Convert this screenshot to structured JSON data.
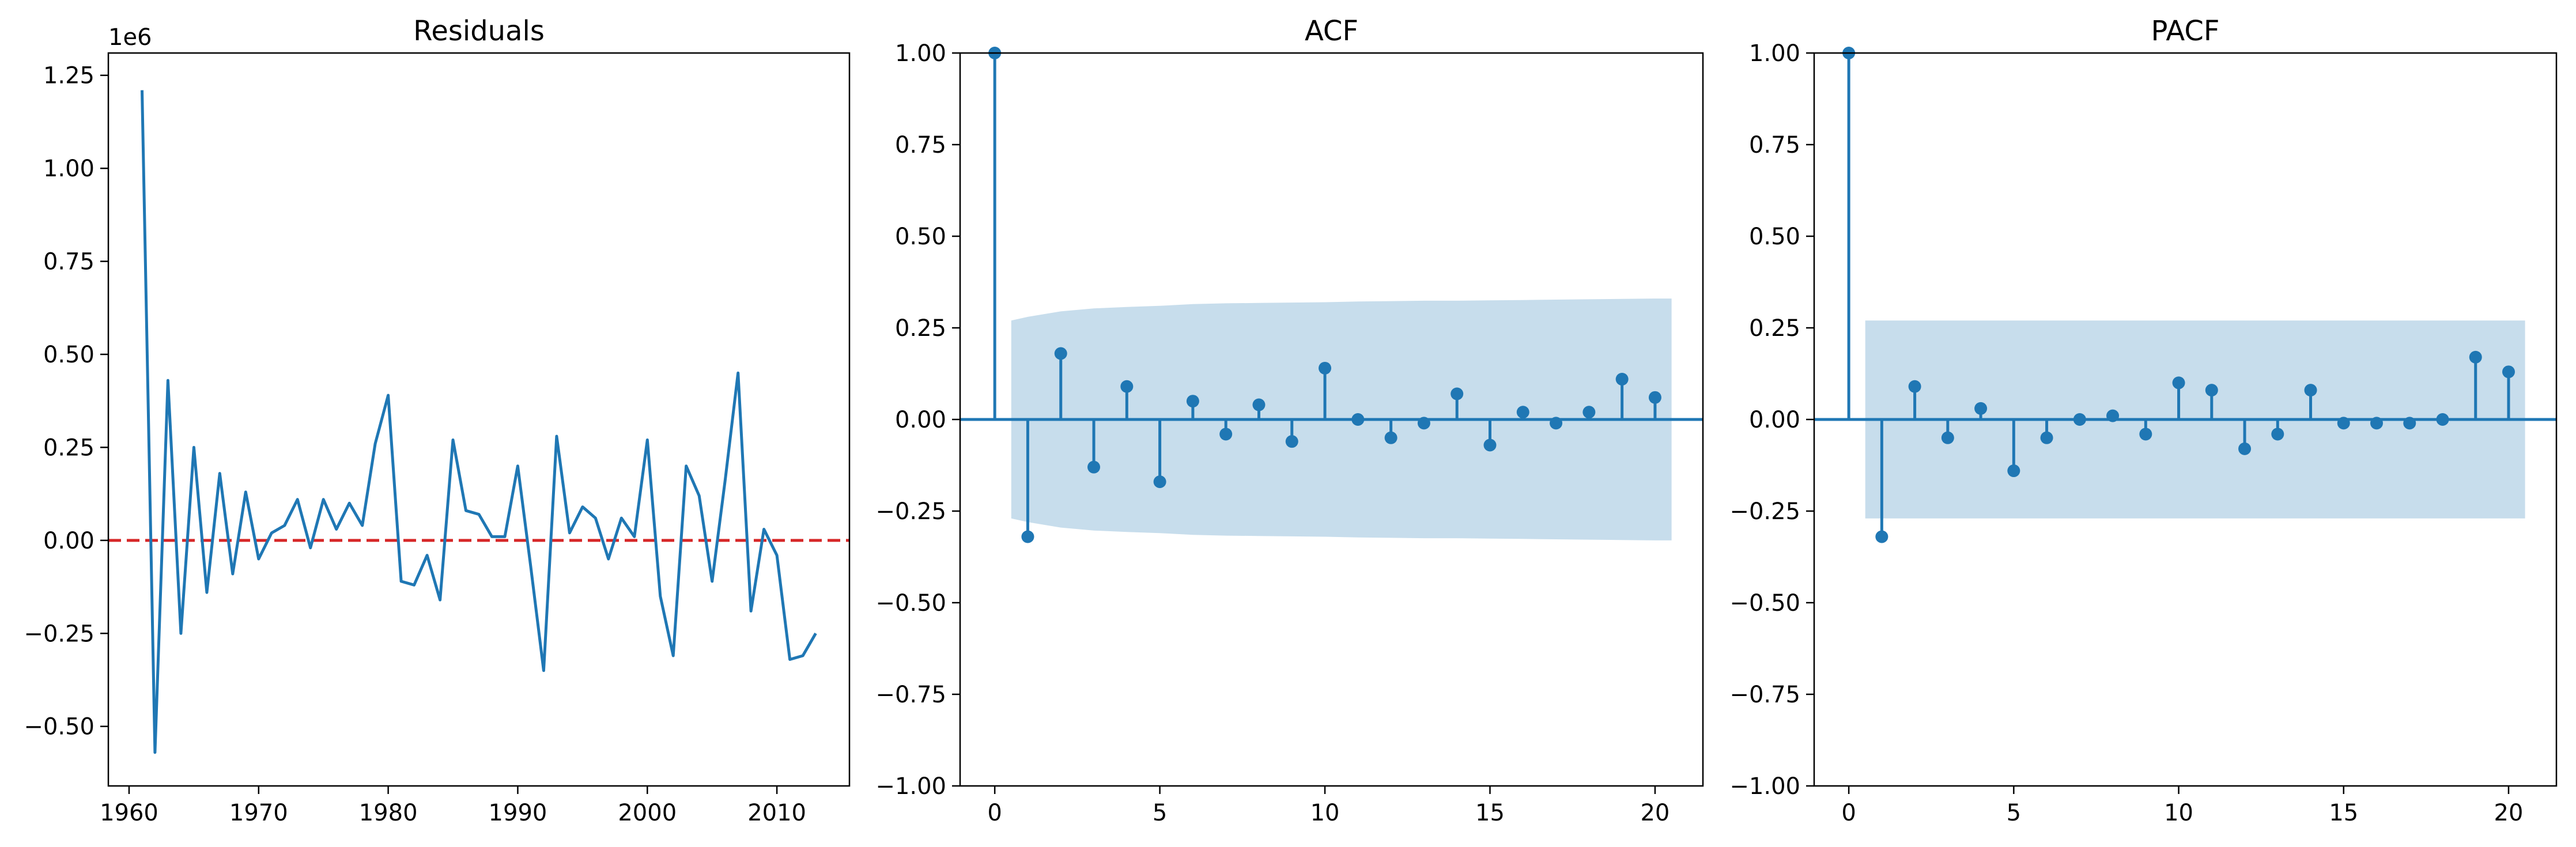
{
  "colors": {
    "line": "#1f77b4",
    "band": "#1f77b4",
    "zero_line_residuals": "#d62728",
    "axes": "#000000"
  },
  "chart_data": [
    {
      "id": "residuals",
      "type": "line",
      "title": "Residuals",
      "offset_text": "1e6",
      "xlim": [
        1958.4,
        2015.6
      ],
      "ylim": [
        -0.66,
        1.31
      ],
      "xticks": [
        1960,
        1970,
        1980,
        1990,
        2000,
        2010
      ],
      "xtick_labels": [
        "1960",
        "1970",
        "1980",
        "1990",
        "2000",
        "2010"
      ],
      "yticks": [
        -0.5,
        -0.25,
        0.0,
        0.25,
        0.5,
        0.75,
        1.0,
        1.25
      ],
      "ytick_labels": [
        "−0.50",
        "−0.25",
        "0.00",
        "0.25",
        "0.50",
        "0.75",
        "1.00",
        "1.25"
      ],
      "reference_line": {
        "y": 0,
        "style": "dashed"
      },
      "x": [
        1961,
        1962,
        1963,
        1964,
        1965,
        1966,
        1967,
        1968,
        1969,
        1970,
        1971,
        1972,
        1973,
        1974,
        1975,
        1976,
        1977,
        1978,
        1979,
        1980,
        1981,
        1982,
        1983,
        1984,
        1985,
        1986,
        1987,
        1988,
        1989,
        1990,
        1991,
        1992,
        1993,
        1994,
        1995,
        1996,
        1997,
        1998,
        1999,
        2000,
        2001,
        2002,
        2003,
        2004,
        2005,
        2006,
        2007,
        2008,
        2009,
        2010,
        2011,
        2012,
        2013
      ],
      "values": [
        1.21,
        -0.57,
        0.43,
        -0.25,
        0.25,
        -0.14,
        0.18,
        -0.09,
        0.13,
        -0.05,
        0.02,
        0.04,
        0.11,
        -0.02,
        0.11,
        0.03,
        0.1,
        0.04,
        0.26,
        0.39,
        -0.11,
        -0.12,
        -0.04,
        -0.16,
        0.27,
        0.08,
        0.07,
        0.01,
        0.01,
        0.2,
        -0.07,
        -0.35,
        0.28,
        0.02,
        0.09,
        0.06,
        -0.05,
        0.06,
        0.01,
        0.27,
        -0.15,
        -0.31,
        0.2,
        0.12,
        -0.11,
        0.16,
        0.45,
        -0.19,
        0.03,
        -0.04,
        -0.32,
        -0.31,
        -0.25
      ]
    },
    {
      "id": "acf",
      "type": "stem",
      "title": "ACF",
      "xlim": [
        -1.05,
        21.45
      ],
      "ylim": [
        -1.0,
        1.0
      ],
      "xticks": [
        0,
        5,
        10,
        15,
        20
      ],
      "xtick_labels": [
        "0",
        "5",
        "10",
        "15",
        "20"
      ],
      "yticks": [
        -1.0,
        -0.75,
        -0.5,
        -0.25,
        0.0,
        0.25,
        0.5,
        0.75,
        1.0
      ],
      "ytick_labels": [
        "−1.00",
        "−0.75",
        "−0.50",
        "−0.25",
        "0.00",
        "0.25",
        "0.50",
        "0.75",
        "1.00"
      ],
      "lags": [
        0,
        1,
        2,
        3,
        4,
        5,
        6,
        7,
        8,
        9,
        10,
        11,
        12,
        13,
        14,
        15,
        16,
        17,
        18,
        19,
        20
      ],
      "values": [
        1.0,
        -0.32,
        0.18,
        -0.13,
        0.09,
        -0.17,
        0.05,
        -0.04,
        0.04,
        -0.06,
        0.14,
        0.0,
        -0.05,
        -0.01,
        0.07,
        -0.07,
        0.02,
        -0.01,
        0.02,
        0.11,
        0.06
      ],
      "confidence_band": {
        "lags": [
          0.5,
          1,
          2,
          3,
          4,
          5,
          6,
          7,
          8,
          9,
          10,
          11,
          12,
          13,
          14,
          15,
          16,
          17,
          18,
          19,
          20,
          20.5
        ],
        "upper": [
          0.27,
          0.28,
          0.295,
          0.303,
          0.307,
          0.31,
          0.315,
          0.317,
          0.318,
          0.319,
          0.32,
          0.322,
          0.323,
          0.324,
          0.324,
          0.325,
          0.326,
          0.327,
          0.328,
          0.329,
          0.33,
          0.33
        ]
      }
    },
    {
      "id": "pacf",
      "type": "stem",
      "title": "PACF",
      "xlim": [
        -1.05,
        21.45
      ],
      "ylim": [
        -1.0,
        1.0
      ],
      "xticks": [
        0,
        5,
        10,
        15,
        20
      ],
      "xtick_labels": [
        "0",
        "5",
        "10",
        "15",
        "20"
      ],
      "yticks": [
        -1.0,
        -0.75,
        -0.5,
        -0.25,
        0.0,
        0.25,
        0.5,
        0.75,
        1.0
      ],
      "ytick_labels": [
        "−1.00",
        "−0.75",
        "−0.50",
        "−0.25",
        "0.00",
        "0.25",
        "0.50",
        "0.75",
        "1.00"
      ],
      "lags": [
        0,
        1,
        2,
        3,
        4,
        5,
        6,
        7,
        8,
        9,
        10,
        11,
        12,
        13,
        14,
        15,
        16,
        17,
        18,
        19,
        20
      ],
      "values": [
        1.0,
        -0.32,
        0.09,
        -0.05,
        0.03,
        -0.14,
        -0.05,
        0.0,
        0.01,
        -0.04,
        0.1,
        0.08,
        -0.08,
        -0.04,
        0.08,
        -0.01,
        -0.01,
        -0.01,
        0.0,
        0.17,
        0.13
      ],
      "confidence_band": {
        "lags": [
          0.5,
          20.5
        ],
        "upper": [
          0.27,
          0.27
        ]
      }
    }
  ]
}
